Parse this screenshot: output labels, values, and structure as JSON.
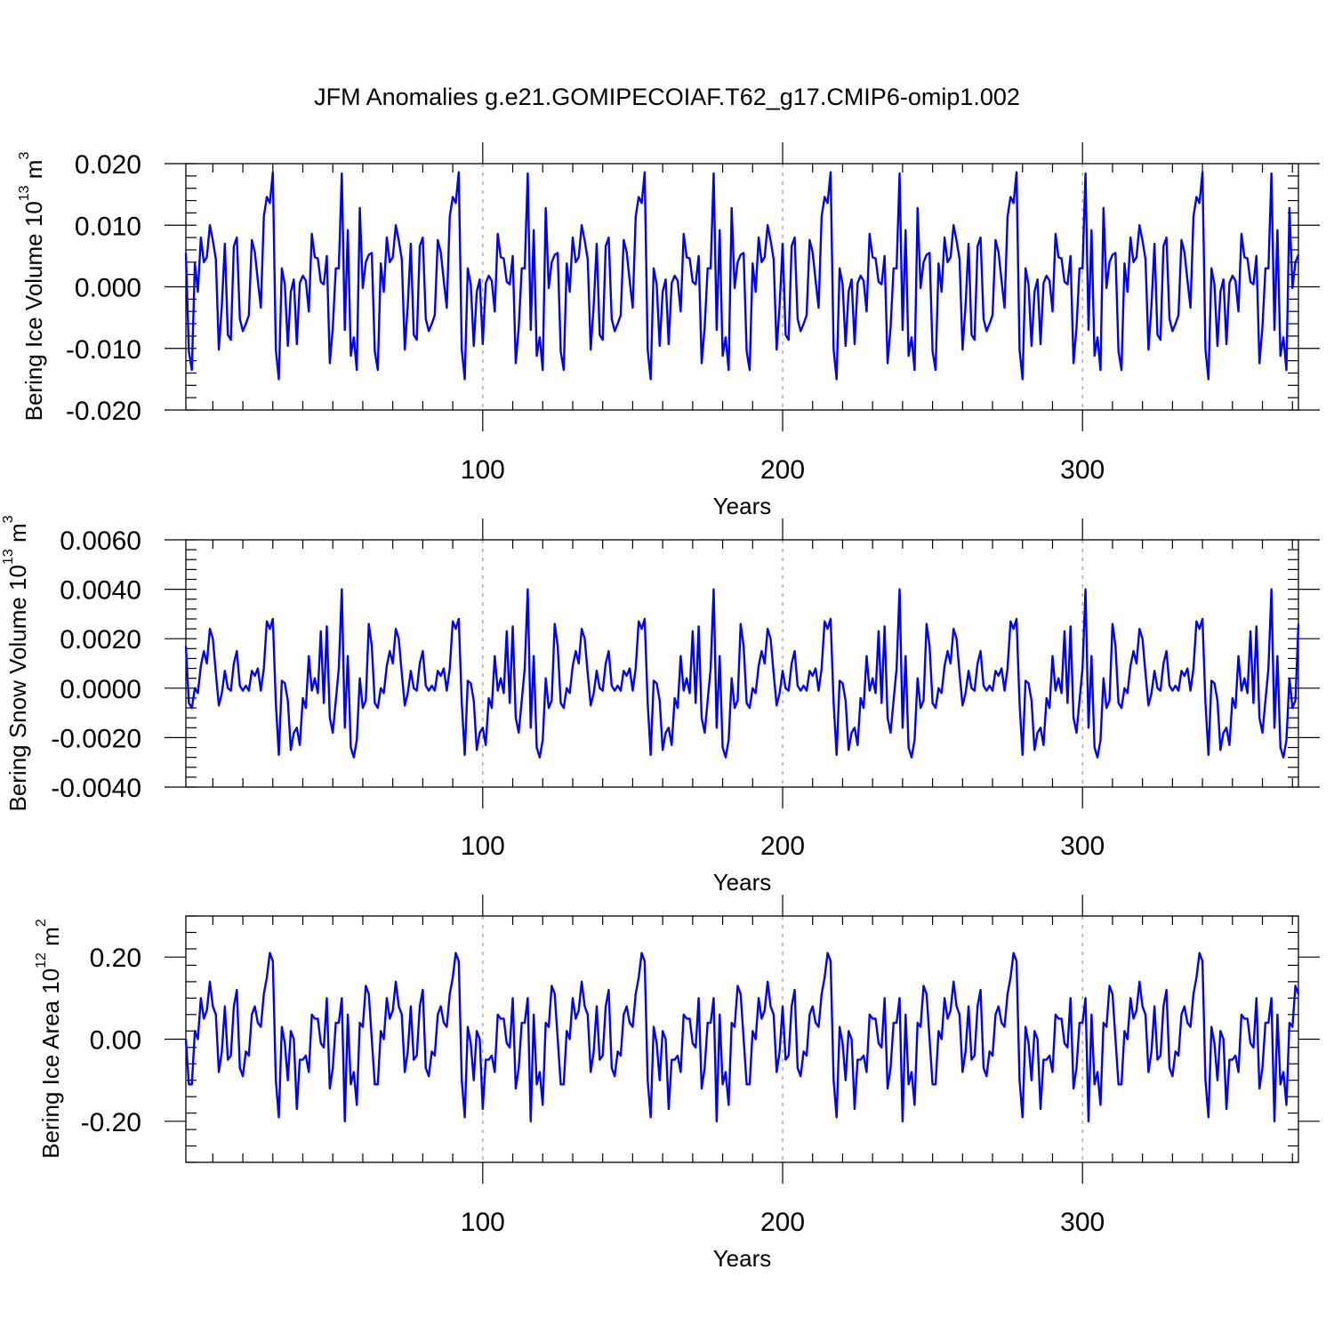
{
  "title": "JFM Anomalies g.e21.GOMIPECOIAF.T62_g17.CMIP6-omip1.002",
  "colors": {
    "series": "#0000ff",
    "ref_line": "#999999"
  },
  "chart_data": [
    {
      "type": "line",
      "ylabel_main": "Bering Ice Volume 10",
      "ylabel_exp": "13",
      "ylabel_unit": " m",
      "ylabel_unit_exp": "3",
      "xlabel": "Years",
      "xlim": [
        1,
        372
      ],
      "ylim": [
        -0.02,
        0.02
      ],
      "yticks": [
        -0.02,
        -0.01,
        0.0,
        0.01,
        0.02
      ],
      "ytick_labels": [
        "-0.020",
        "-0.010",
        "0.000",
        "0.010",
        "0.020"
      ],
      "xticks": [
        100,
        200,
        300
      ],
      "xtick_labels": [
        "100",
        "200",
        "300"
      ],
      "ref_lines_x": [
        100,
        200,
        300
      ],
      "period_years": 62,
      "cycles": 6,
      "cycle_values": [
        0.0055,
        -0.0105,
        -0.0135,
        0.0038,
        -0.0008,
        0.008,
        0.004,
        0.0048,
        0.01,
        0.0075,
        0.0045,
        -0.0102,
        -0.003,
        0.007,
        -0.0078,
        -0.0086,
        0.0066,
        0.008,
        -0.0052,
        -0.0072,
        -0.006,
        -0.0046,
        0.0076,
        0.0056,
        0.001,
        -0.0034,
        0.0114,
        0.0146,
        0.0136,
        0.0186,
        -0.0102,
        -0.015,
        0.003,
        0.0004,
        -0.0096,
        -0.0008,
        0.0012,
        -0.0093,
        0.0006,
        0.0018,
        0.001,
        -0.004,
        0.0086,
        0.0048,
        0.0046,
        0.0008,
        0.0004,
        0.005,
        -0.0124,
        -0.0066,
        0.003,
        0.003,
        0.0184,
        -0.007,
        0.0092,
        -0.0112,
        -0.0082,
        -0.0135,
        0.0128,
        -0.0002,
        0.004,
        0.0052
      ]
    },
    {
      "type": "line",
      "ylabel_main": "Bering Snow Volume 10",
      "ylabel_exp": "13",
      "ylabel_unit": " m",
      "ylabel_unit_exp": "3",
      "xlabel": "Years",
      "xlim": [
        1,
        372
      ],
      "ylim": [
        -0.004,
        0.006
      ],
      "yticks": [
        -0.004,
        -0.002,
        0.0,
        0.002,
        0.004,
        0.006
      ],
      "ytick_labels": [
        "-0.0040",
        "-0.0020",
        "0.0000",
        "0.0020",
        "0.0040",
        "0.0060"
      ],
      "xticks": [
        100,
        200,
        300
      ],
      "xtick_labels": [
        "100",
        "200",
        "300"
      ],
      "ref_lines_x": [
        100,
        200,
        300
      ],
      "period_years": 62,
      "cycles": 6,
      "cycle_values": [
        0.0017,
        -0.0006,
        -0.0008,
        0.0,
        -0.0002,
        0.0009,
        0.0015,
        0.001,
        0.0024,
        0.002,
        0.0006,
        -0.0007,
        -0.0002,
        0.0007,
        0.0,
        -0.0001,
        0.001,
        0.0015,
        0.0001,
        -0.0001,
        0.0001,
        -0.0001,
        0.0007,
        0.0005,
        0.0008,
        -0.0001,
        0.0008,
        0.0027,
        0.0024,
        0.0028,
        -0.0006,
        -0.0027,
        0.0003,
        0.0002,
        -0.0005,
        -0.0025,
        -0.0018,
        -0.0016,
        -0.0023,
        -0.0004,
        -0.0008,
        0.0013,
        -0.0001,
        0.0004,
        -0.0002,
        0.0023,
        -0.0006,
        0.0025,
        -0.0012,
        -0.0018,
        -0.0005,
        0.0008,
        0.004,
        -0.0016,
        0.0013,
        -0.0024,
        -0.0028,
        -0.0021,
        0.0004,
        -0.0008,
        -0.0005,
        0.0026
      ]
    },
    {
      "type": "line",
      "ylabel_main": "Bering Ice Area 10",
      "ylabel_exp": "12",
      "ylabel_unit": " m",
      "ylabel_unit_exp": "2",
      "xlabel": "Years",
      "xlim": [
        1,
        372
      ],
      "ylim": [
        -0.3,
        0.3
      ],
      "yticks": [
        -0.2,
        0.0,
        0.2
      ],
      "ytick_labels": [
        "-0.20",
        "0.00",
        "0.20"
      ],
      "xticks": [
        100,
        200,
        300
      ],
      "xtick_labels": [
        "100",
        "200",
        "300"
      ],
      "ref_lines_x": [
        100,
        200,
        300
      ],
      "period_years": 62,
      "cycles": 6,
      "cycle_values": [
        0.0,
        -0.11,
        -0.11,
        0.02,
        0.0,
        0.1,
        0.05,
        0.07,
        0.14,
        0.08,
        0.06,
        -0.08,
        -0.03,
        0.08,
        -0.05,
        -0.04,
        0.08,
        0.12,
        -0.07,
        -0.09,
        -0.03,
        -0.04,
        0.06,
        0.08,
        0.04,
        0.03,
        0.11,
        0.15,
        0.21,
        0.19,
        -0.1,
        -0.19,
        0.03,
        -0.01,
        -0.1,
        0.02,
        0.0,
        -0.17,
        -0.05,
        -0.05,
        -0.04,
        -0.08,
        0.06,
        0.05,
        0.05,
        -0.01,
        -0.02,
        0.1,
        -0.12,
        -0.07,
        0.04,
        0.04,
        0.1,
        -0.2,
        0.06,
        -0.11,
        -0.08,
        -0.16,
        0.04,
        0.03,
        0.13,
        0.11
      ]
    }
  ]
}
